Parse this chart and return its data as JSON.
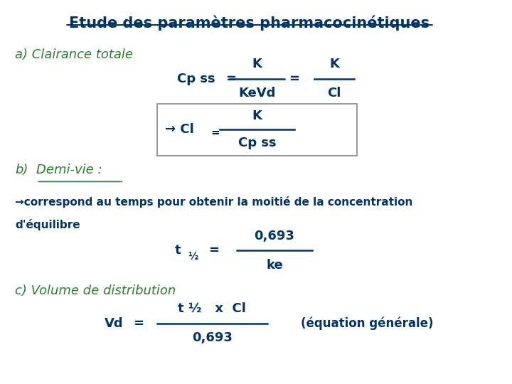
{
  "title": "Etude des paramètres pharmacocinétiques",
  "title_color": "#003366",
  "title_fontsize": 15,
  "bg_color": "#ffffff",
  "green_color": "#2e7d32",
  "dark_blue": "#003366",
  "section_a_label": "a) Clairance totale",
  "section_b_label": "b) Demi-vie :",
  "section_c_label": "c) Volume de distribution"
}
